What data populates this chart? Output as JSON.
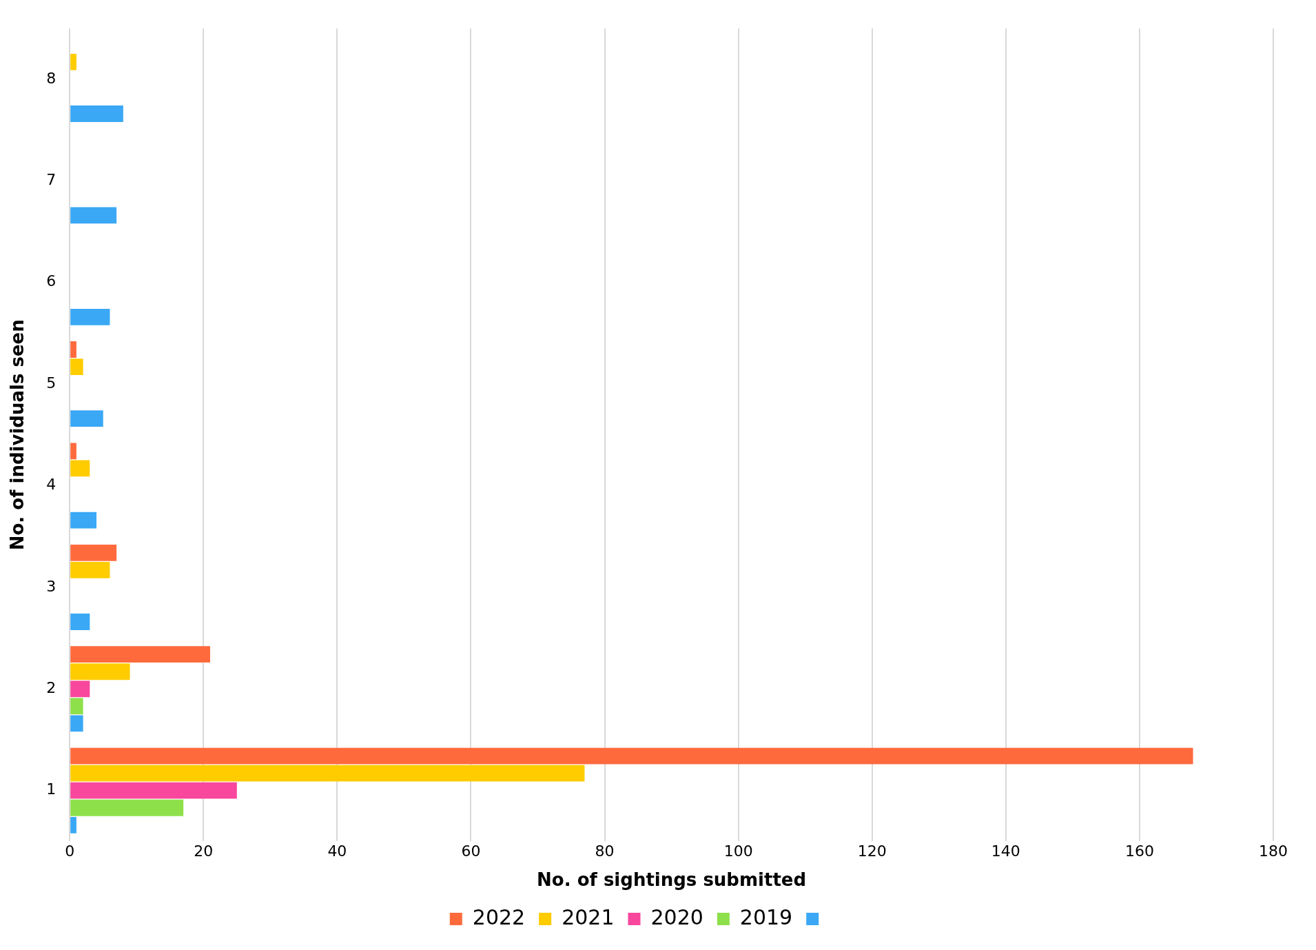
{
  "chart_data": {
    "type": "bar",
    "orientation": "horizontal",
    "xlabel": "No. of sightings submitted",
    "ylabel": "No. of individuals seen",
    "categories": [
      "8",
      "7",
      "6",
      "5",
      "4",
      "3",
      "2",
      "1"
    ],
    "series": [
      {
        "name": "2022",
        "color": "#ff6a3d",
        "values": [
          0,
          0,
          0,
          1,
          1,
          7,
          21,
          168
        ]
      },
      {
        "name": "2021",
        "color": "#ffcc00",
        "values": [
          1,
          0,
          0,
          2,
          3,
          6,
          9,
          77
        ]
      },
      {
        "name": "2020",
        "color": "#f8479c",
        "values": [
          0,
          0,
          0,
          0,
          0,
          0,
          3,
          25
        ]
      },
      {
        "name": "2019",
        "color": "#8ee04a",
        "values": [
          0,
          0,
          0,
          0,
          0,
          0,
          2,
          17
        ]
      },
      {
        "color": "#3aa8f5",
        "values": [
          8,
          7,
          6,
          5,
          4,
          3,
          2,
          1
        ]
      }
    ],
    "xlim": [
      0,
      180
    ],
    "xticks": [
      0,
      20,
      40,
      60,
      80,
      100,
      120,
      140,
      160,
      180
    ],
    "grid": "x",
    "legend": "bottom"
  }
}
